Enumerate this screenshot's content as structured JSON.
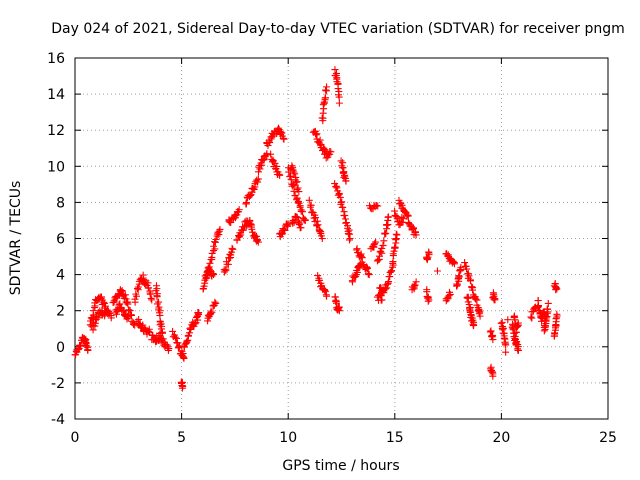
{
  "chart_data": {
    "type": "scatter",
    "title": "Day 024 of 2021, Sidereal Day-to-day VTEC variation (SDTVAR) for receiver pngm",
    "xlabel": "GPS time / hours",
    "ylabel": "SDTVAR / TECUs",
    "xlim": [
      0,
      25
    ],
    "ylim": [
      -4,
      16
    ],
    "x_ticks": [
      0,
      5,
      10,
      15,
      20,
      25
    ],
    "y_ticks": [
      -4,
      -2,
      0,
      2,
      4,
      6,
      8,
      10,
      12,
      14,
      16
    ],
    "grid": true,
    "marker": "plus",
    "color": "#ff0000",
    "series": [
      {
        "name": "SDTVAR",
        "tracks": [
          [
            [
              0.0,
              -0.5
            ],
            [
              0.2,
              0.0
            ],
            [
              0.4,
              0.6
            ],
            [
              0.5,
              0.2
            ],
            [
              0.6,
              -0.2
            ]
          ],
          [
            [
              0.7,
              1.2
            ],
            [
              0.9,
              2.2
            ],
            [
              1.1,
              2.8
            ],
            [
              1.3,
              2.5
            ],
            [
              1.5,
              2.0
            ],
            [
              1.7,
              1.6
            ]
          ],
          [
            [
              0.8,
              1.0
            ],
            [
              1.0,
              1.5
            ],
            [
              1.2,
              2.0
            ],
            [
              1.4,
              1.8
            ]
          ],
          [
            [
              1.8,
              2.5
            ],
            [
              2.0,
              2.8
            ],
            [
              2.2,
              3.1
            ],
            [
              2.4,
              2.6
            ],
            [
              2.6,
              1.8
            ],
            [
              2.8,
              1.2
            ]
          ],
          [
            [
              1.9,
              1.8
            ],
            [
              2.1,
              2.3
            ],
            [
              2.3,
              1.9
            ],
            [
              2.5,
              1.6
            ]
          ],
          [
            [
              2.8,
              2.5
            ],
            [
              3.0,
              3.6
            ],
            [
              3.2,
              3.8
            ],
            [
              3.4,
              3.4
            ],
            [
              3.6,
              2.6
            ]
          ],
          [
            [
              2.9,
              1.5
            ],
            [
              3.1,
              1.2
            ],
            [
              3.3,
              0.9
            ],
            [
              3.5,
              0.8
            ]
          ],
          [
            [
              3.6,
              0.5
            ],
            [
              3.8,
              0.4
            ],
            [
              4.0,
              0.6
            ],
            [
              4.2,
              0.2
            ],
            [
              4.4,
              -0.1
            ]
          ],
          [
            [
              3.8,
              3.4
            ],
            [
              3.9,
              2.4
            ],
            [
              4.0,
              1.4
            ],
            [
              4.1,
              0.8
            ]
          ],
          [
            [
              4.6,
              0.8
            ],
            [
              4.8,
              0.2
            ],
            [
              5.0,
              -0.4
            ],
            [
              5.1,
              -0.6
            ]
          ],
          [
            [
              5.0,
              -2.0
            ],
            [
              5.05,
              -2.2
            ]
          ],
          [
            [
              5.1,
              0.0
            ],
            [
              5.3,
              0.6
            ],
            [
              5.5,
              1.2
            ],
            [
              5.7,
              1.5
            ],
            [
              5.8,
              1.9
            ]
          ],
          [
            [
              6.0,
              3.2
            ],
            [
              6.2,
              4.0
            ],
            [
              6.4,
              5.0
            ],
            [
              6.6,
              5.8
            ],
            [
              6.8,
              6.5
            ]
          ],
          [
            [
              6.1,
              3.8
            ],
            [
              6.3,
              4.3
            ],
            [
              6.5,
              4.0
            ]
          ],
          [
            [
              6.2,
              1.6
            ],
            [
              6.4,
              2.0
            ],
            [
              6.6,
              2.4
            ]
          ],
          [
            [
              7.0,
              4.2
            ],
            [
              7.2,
              4.8
            ],
            [
              7.4,
              5.4
            ]
          ],
          [
            [
              7.2,
              6.9
            ],
            [
              7.5,
              7.2
            ],
            [
              7.7,
              7.6
            ]
          ],
          [
            [
              7.6,
              6.0
            ],
            [
              7.8,
              6.4
            ],
            [
              8.0,
              6.8
            ],
            [
              8.2,
              7.0
            ]
          ],
          [
            [
              8.0,
              8.0
            ],
            [
              8.2,
              8.4
            ],
            [
              8.4,
              8.8
            ],
            [
              8.6,
              9.3
            ]
          ],
          [
            [
              8.2,
              6.8
            ],
            [
              8.4,
              6.2
            ],
            [
              8.6,
              5.8
            ]
          ],
          [
            [
              8.6,
              9.8
            ],
            [
              8.8,
              10.3
            ],
            [
              9.0,
              10.7
            ]
          ],
          [
            [
              9.0,
              11.2
            ],
            [
              9.2,
              11.6
            ],
            [
              9.4,
              11.9
            ],
            [
              9.6,
              12.0
            ],
            [
              9.8,
              11.5
            ]
          ],
          [
            [
              9.2,
              10.5
            ],
            [
              9.4,
              10.0
            ],
            [
              9.6,
              9.5
            ]
          ],
          [
            [
              9.6,
              6.2
            ],
            [
              9.8,
              6.5
            ],
            [
              10.0,
              6.8
            ]
          ],
          [
            [
              10.0,
              9.8
            ],
            [
              10.2,
              9.0
            ],
            [
              10.4,
              8.2
            ],
            [
              10.6,
              7.5
            ],
            [
              10.8,
              7.0
            ]
          ],
          [
            [
              10.1,
              10.0
            ],
            [
              10.3,
              9.6
            ],
            [
              10.5,
              8.6
            ]
          ],
          [
            [
              10.2,
              6.8
            ],
            [
              10.4,
              7.2
            ],
            [
              10.6,
              6.6
            ]
          ],
          [
            [
              11.0,
              8.0
            ],
            [
              11.2,
              7.3
            ],
            [
              11.4,
              6.6
            ],
            [
              11.6,
              6.0
            ]
          ],
          [
            [
              11.2,
              12.0
            ],
            [
              11.4,
              11.5
            ],
            [
              11.6,
              11.0
            ],
            [
              11.8,
              10.6
            ],
            [
              12.0,
              10.8
            ]
          ],
          [
            [
              11.6,
              12.5
            ],
            [
              11.7,
              13.6
            ],
            [
              11.8,
              14.4
            ]
          ],
          [
            [
              12.2,
              15.2
            ],
            [
              12.3,
              14.8
            ],
            [
              12.4,
              13.5
            ]
          ],
          [
            [
              11.4,
              3.8
            ],
            [
              11.6,
              3.2
            ],
            [
              11.8,
              2.8
            ]
          ],
          [
            [
              12.2,
              2.7
            ],
            [
              12.3,
              2.2
            ],
            [
              12.4,
              2.0
            ]
          ],
          [
            [
              12.2,
              9.0
            ],
            [
              12.4,
              8.4
            ],
            [
              12.6,
              7.5
            ],
            [
              12.8,
              6.6
            ],
            [
              12.9,
              6.0
            ]
          ],
          [
            [
              12.5,
              10.2
            ],
            [
              12.6,
              9.6
            ],
            [
              12.7,
              9.2
            ]
          ],
          [
            [
              13.2,
              5.5
            ],
            [
              13.4,
              5.0
            ],
            [
              13.6,
              4.5
            ],
            [
              13.8,
              4.0
            ]
          ],
          [
            [
              13.0,
              3.7
            ],
            [
              13.2,
              4.2
            ],
            [
              13.4,
              4.6
            ]
          ],
          [
            [
              13.8,
              7.8
            ],
            [
              14.2,
              7.8
            ]
          ],
          [
            [
              13.9,
              5.4
            ],
            [
              14.1,
              5.8
            ]
          ],
          [
            [
              14.2,
              4.8
            ],
            [
              14.4,
              5.4
            ],
            [
              14.6,
              6.6
            ],
            [
              14.7,
              7.2
            ]
          ],
          [
            [
              14.3,
              3.4
            ],
            [
              14.5,
              3.0
            ],
            [
              14.7,
              3.6
            ],
            [
              14.9,
              4.6
            ],
            [
              15.0,
              5.6
            ],
            [
              15.1,
              6.2
            ]
          ],
          [
            [
              14.2,
              2.8
            ],
            [
              14.4,
              2.6
            ]
          ],
          [
            [
              15.2,
              8.0
            ],
            [
              15.4,
              7.6
            ],
            [
              15.6,
              7.2
            ],
            [
              15.8,
              6.6
            ],
            [
              16.0,
              6.2
            ]
          ],
          [
            [
              15.0,
              7.4
            ],
            [
              15.2,
              6.9
            ],
            [
              15.4,
              7.1
            ]
          ],
          [
            [
              15.8,
              3.2
            ],
            [
              16.0,
              3.6
            ]
          ],
          [
            [
              16.5,
              4.8
            ],
            [
              16.6,
              5.2
            ]
          ],
          [
            [
              16.5,
              3.0
            ],
            [
              16.6,
              2.6
            ]
          ],
          [
            [
              17.0,
              4.2
            ]
          ],
          [
            [
              17.4,
              5.2
            ],
            [
              17.6,
              4.8
            ],
            [
              17.8,
              4.6
            ]
          ],
          [
            [
              17.4,
              2.6
            ],
            [
              17.6,
              2.9
            ]
          ],
          [
            [
              17.9,
              3.4
            ],
            [
              18.0,
              3.8
            ],
            [
              18.1,
              4.4
            ]
          ],
          [
            [
              18.3,
              4.5
            ],
            [
              18.5,
              3.8
            ],
            [
              18.7,
              3.0
            ],
            [
              18.9,
              2.2
            ],
            [
              19.0,
              1.7
            ]
          ],
          [
            [
              18.4,
              2.8
            ],
            [
              18.5,
              2.2
            ],
            [
              18.6,
              1.6
            ],
            [
              18.7,
              1.2
            ]
          ],
          [
            [
              19.5,
              0.8
            ],
            [
              19.6,
              0.4
            ]
          ],
          [
            [
              19.6,
              2.9
            ],
            [
              19.7,
              2.6
            ]
          ],
          [
            [
              19.5,
              -1.2
            ],
            [
              19.6,
              -1.5
            ]
          ],
          [
            [
              20.0,
              1.3
            ],
            [
              20.1,
              0.7
            ],
            [
              20.2,
              0.1
            ]
          ],
          [
            [
              20.2,
              -0.3
            ]
          ],
          [
            [
              20.3,
              1.5
            ]
          ],
          [
            [
              20.5,
              1.2
            ],
            [
              20.6,
              0.6
            ],
            [
              20.7,
              0.2
            ],
            [
              20.8,
              -0.2
            ]
          ],
          [
            [
              20.6,
              1.7
            ],
            [
              20.7,
              0.9
            ],
            [
              20.8,
              1.2
            ]
          ],
          [
            [
              21.4,
              1.6
            ],
            [
              21.6,
              2.2
            ]
          ],
          [
            [
              21.7,
              2.5
            ],
            [
              21.8,
              2.0
            ],
            [
              21.9,
              1.5
            ],
            [
              22.0,
              2.0
            ],
            [
              22.1,
              1.6
            ]
          ],
          [
            [
              22.0,
              1.0
            ],
            [
              22.1,
              1.3
            ],
            [
              22.2,
              2.4
            ]
          ],
          [
            [
              22.5,
              0.6
            ],
            [
              22.55,
              1.2
            ],
            [
              22.6,
              1.8
            ]
          ],
          [
            [
              22.5,
              3.4
            ],
            [
              22.6,
              3.2
            ]
          ]
        ]
      }
    ]
  }
}
